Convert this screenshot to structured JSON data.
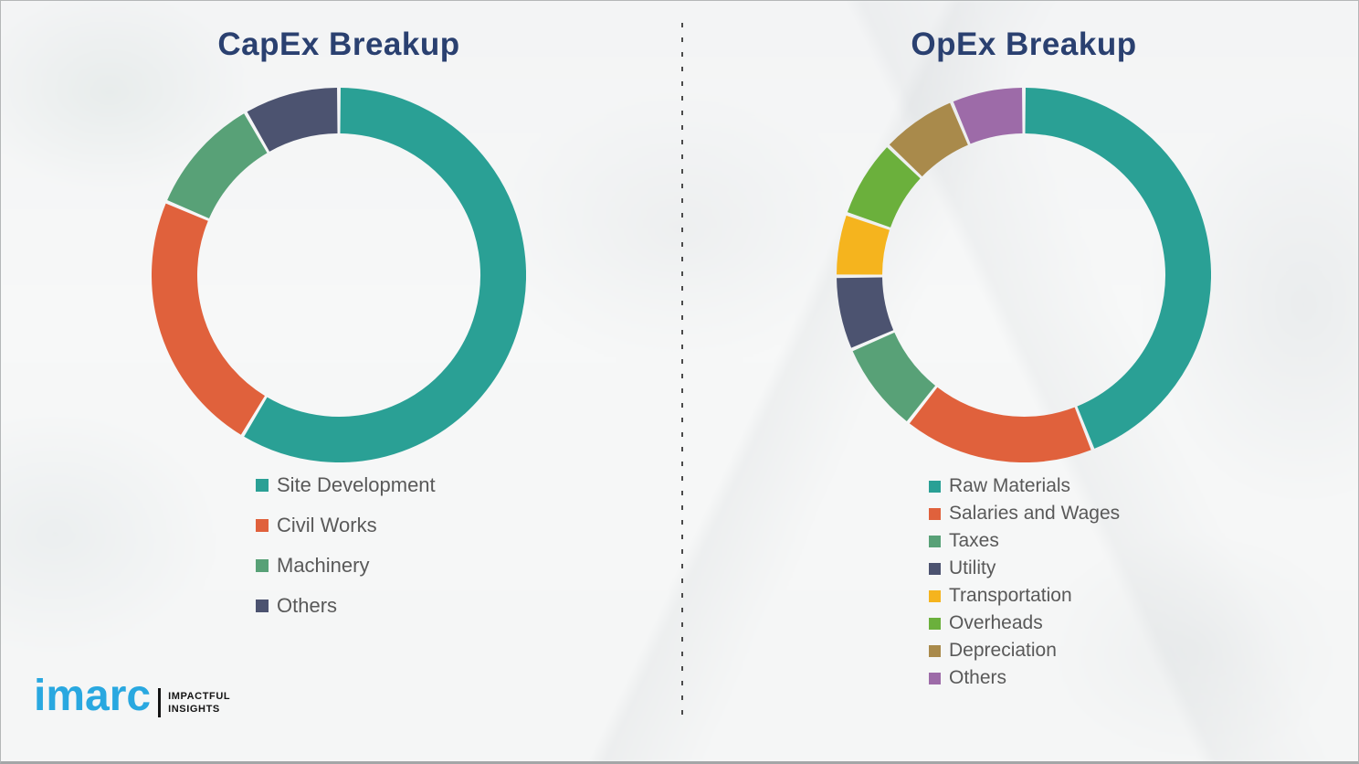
{
  "page": {
    "kind": "infographic",
    "background_color": "#f6f7f7"
  },
  "chart_data": [
    {
      "type": "pie",
      "subtype": "donut",
      "title": "CapEx Breakup",
      "categories": [
        "Site Development",
        "Civil Works",
        "Machinery",
        "Others"
      ],
      "values": [
        58.6,
        22.8,
        10.3,
        8.3
      ],
      "unit": "percent-of-ring",
      "colors": [
        "#2aa095",
        "#e0613c",
        "#58a177",
        "#4c5370"
      ],
      "start_angle_deg": 0,
      "direction": "clockwise",
      "segment_gap_color": "#ffffff",
      "legend_position": "below-left",
      "data_labels": "none"
    },
    {
      "type": "pie",
      "subtype": "donut",
      "title": "OpEx Breakup",
      "categories": [
        "Raw Materials",
        "Salaries and Wages",
        "Taxes",
        "Utility",
        "Transportation",
        "Overheads",
        "Depreciation",
        "Others"
      ],
      "values": [
        44.0,
        16.6,
        7.9,
        6.4,
        5.4,
        6.8,
        6.6,
        6.3
      ],
      "unit": "percent-of-ring",
      "colors": [
        "#2aa095",
        "#e0613c",
        "#58a177",
        "#4c5370",
        "#f5b41e",
        "#6bb03c",
        "#a98a4b",
        "#9d6ba8"
      ],
      "start_angle_deg": 0,
      "direction": "clockwise",
      "segment_gap_color": "#ffffff",
      "legend_position": "below-left",
      "data_labels": "none"
    }
  ],
  "divider": {
    "orientation": "vertical",
    "style": "dashed",
    "color": "#4a4a4a"
  },
  "branding": {
    "logo_text": "imarc",
    "logo_color": "#29a8e0",
    "tagline_line1": "IMPACTFUL",
    "tagline_line2": "INSIGHTS"
  },
  "colors": {
    "title_text": "#2a4070",
    "legend_text": "#595959"
  }
}
